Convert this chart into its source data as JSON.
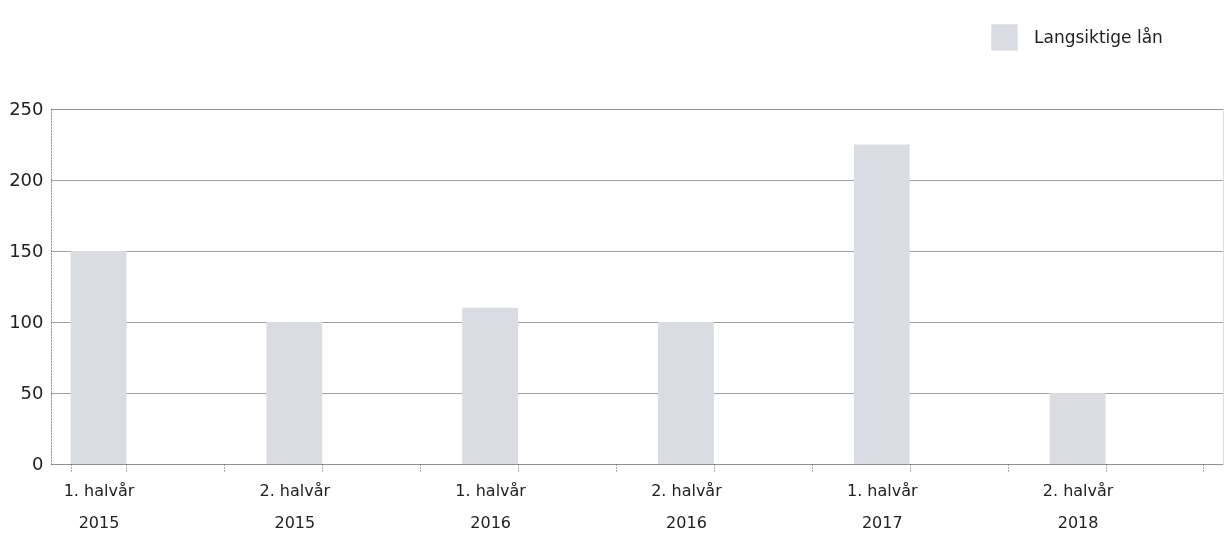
{
  "chart_data": {
    "type": "bar",
    "categories": [
      "1. halvår 2015",
      null,
      "2. halvår 2015",
      null,
      "1. halvår 2016",
      null,
      "2. halvår 2016",
      null,
      "1. halvår 2017",
      null,
      "2. halvår 2018",
      null
    ],
    "series": [
      {
        "name": "Langsiktige lån",
        "color": "#d9dce3",
        "values": [
          150,
          null,
          100,
          null,
          110,
          null,
          100,
          null,
          225,
          null,
          50,
          null
        ]
      }
    ],
    "ylim": [
      0,
      250
    ],
    "yticks": [
      0,
      50,
      100,
      150,
      200,
      250
    ],
    "grid": "y",
    "legend": "top right"
  }
}
